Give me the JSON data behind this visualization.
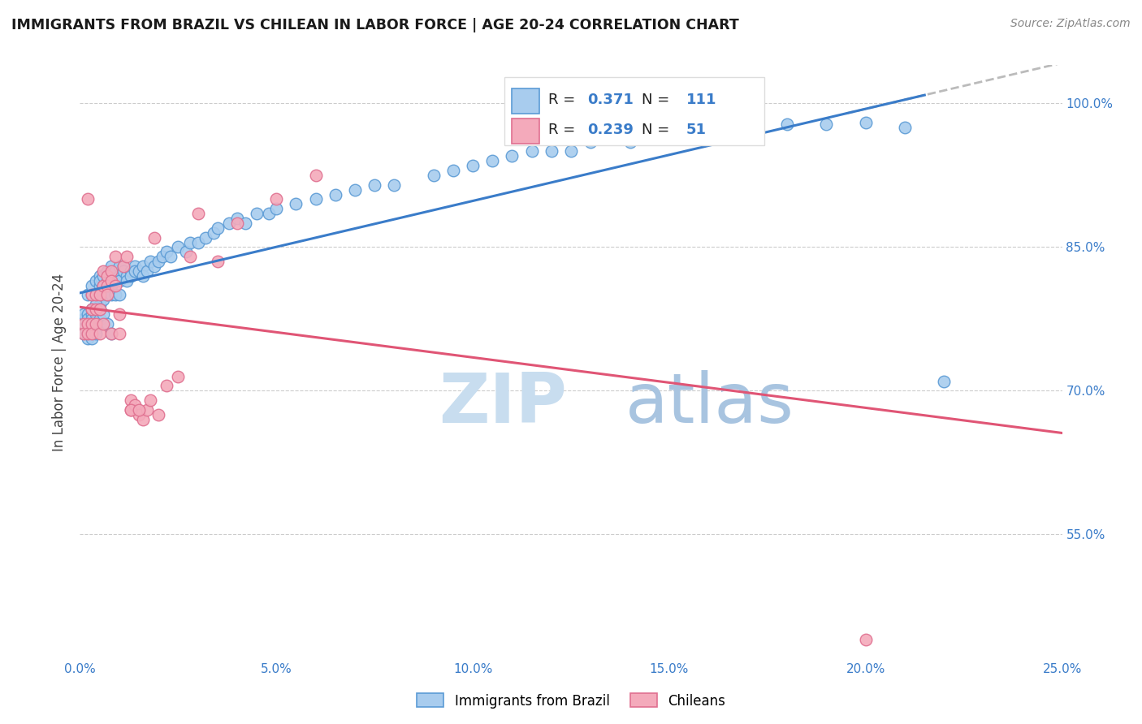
{
  "title": "IMMIGRANTS FROM BRAZIL VS CHILEAN IN LABOR FORCE | AGE 20-24 CORRELATION CHART",
  "source": "Source: ZipAtlas.com",
  "ylabel": "In Labor Force | Age 20-24",
  "legend_brazil_R": "0.371",
  "legend_brazil_N": "111",
  "legend_chilean_R": "0.239",
  "legend_chilean_N": "51",
  "brazil_color": "#A8CCEE",
  "brazil_edge_color": "#5B9BD5",
  "chilean_color": "#F4AABB",
  "chilean_edge_color": "#E07090",
  "brazil_line_color": "#3A7CC9",
  "chilean_line_color": "#E05575",
  "dashed_line_color": "#BBBBBB",
  "watermark_zip": "ZIP",
  "watermark_atlas": "atlas",
  "xmin": 0.0,
  "xmax": 0.25,
  "ymin": 0.42,
  "ymax": 1.04,
  "ytick_vals": [
    0.55,
    0.7,
    0.85,
    1.0
  ],
  "ytick_labels": [
    "55.0%",
    "70.0%",
    "85.0%",
    "100.0%"
  ],
  "xtick_vals": [
    0.0,
    0.025,
    0.05,
    0.075,
    0.1,
    0.125,
    0.15,
    0.175,
    0.2,
    0.225,
    0.25
  ],
  "xtick_labels": [
    "0.0%",
    "",
    "5.0%",
    "",
    "10.0%",
    "",
    "15.0%",
    "",
    "20.0%",
    "",
    "25.0%"
  ],
  "brazil_x": [
    0.001,
    0.001,
    0.001,
    0.001,
    0.002,
    0.002,
    0.002,
    0.002,
    0.002,
    0.002,
    0.002,
    0.003,
    0.003,
    0.003,
    0.003,
    0.003,
    0.003,
    0.003,
    0.003,
    0.004,
    0.004,
    0.004,
    0.004,
    0.004,
    0.004,
    0.005,
    0.005,
    0.005,
    0.005,
    0.005,
    0.005,
    0.006,
    0.006,
    0.006,
    0.006,
    0.007,
    0.007,
    0.007,
    0.007,
    0.008,
    0.008,
    0.008,
    0.008,
    0.009,
    0.009,
    0.009,
    0.01,
    0.01,
    0.01,
    0.01,
    0.011,
    0.011,
    0.012,
    0.012,
    0.013,
    0.013,
    0.014,
    0.014,
    0.015,
    0.016,
    0.016,
    0.017,
    0.018,
    0.019,
    0.02,
    0.021,
    0.022,
    0.023,
    0.025,
    0.027,
    0.028,
    0.03,
    0.032,
    0.034,
    0.035,
    0.038,
    0.04,
    0.042,
    0.045,
    0.048,
    0.05,
    0.055,
    0.06,
    0.065,
    0.07,
    0.075,
    0.08,
    0.09,
    0.095,
    0.1,
    0.105,
    0.11,
    0.115,
    0.12,
    0.125,
    0.13,
    0.14,
    0.15,
    0.16,
    0.17,
    0.18,
    0.19,
    0.2,
    0.21,
    0.003,
    0.004,
    0.005,
    0.006,
    0.007,
    0.008,
    0.22
  ],
  "brazil_y": [
    0.775,
    0.78,
    0.765,
    0.76,
    0.8,
    0.78,
    0.775,
    0.77,
    0.76,
    0.755,
    0.77,
    0.78,
    0.775,
    0.77,
    0.765,
    0.76,
    0.755,
    0.8,
    0.81,
    0.8,
    0.78,
    0.77,
    0.765,
    0.76,
    0.815,
    0.8,
    0.79,
    0.775,
    0.81,
    0.82,
    0.815,
    0.81,
    0.8,
    0.795,
    0.82,
    0.815,
    0.81,
    0.8,
    0.825,
    0.82,
    0.81,
    0.8,
    0.83,
    0.825,
    0.815,
    0.8,
    0.82,
    0.815,
    0.8,
    0.83,
    0.83,
    0.825,
    0.82,
    0.815,
    0.825,
    0.82,
    0.83,
    0.825,
    0.825,
    0.83,
    0.82,
    0.825,
    0.835,
    0.83,
    0.835,
    0.84,
    0.845,
    0.84,
    0.85,
    0.845,
    0.855,
    0.855,
    0.86,
    0.865,
    0.87,
    0.875,
    0.88,
    0.875,
    0.885,
    0.885,
    0.89,
    0.895,
    0.9,
    0.905,
    0.91,
    0.915,
    0.915,
    0.925,
    0.93,
    0.935,
    0.94,
    0.945,
    0.95,
    0.95,
    0.95,
    0.96,
    0.96,
    0.965,
    0.97,
    0.975,
    0.978,
    0.978,
    0.98,
    0.975,
    0.785,
    0.79,
    0.785,
    0.78,
    0.77,
    0.76,
    0.71
  ],
  "chilean_x": [
    0.001,
    0.001,
    0.002,
    0.002,
    0.002,
    0.003,
    0.003,
    0.003,
    0.003,
    0.004,
    0.004,
    0.004,
    0.005,
    0.005,
    0.005,
    0.006,
    0.006,
    0.006,
    0.007,
    0.007,
    0.007,
    0.008,
    0.008,
    0.008,
    0.009,
    0.009,
    0.01,
    0.01,
    0.011,
    0.012,
    0.013,
    0.013,
    0.014,
    0.015,
    0.016,
    0.017,
    0.018,
    0.019,
    0.02,
    0.022,
    0.025,
    0.028,
    0.03,
    0.035,
    0.04,
    0.05,
    0.06,
    0.013,
    0.015,
    0.12,
    0.2
  ],
  "chilean_y": [
    0.77,
    0.76,
    0.9,
    0.77,
    0.76,
    0.8,
    0.785,
    0.77,
    0.76,
    0.8,
    0.785,
    0.77,
    0.8,
    0.785,
    0.76,
    0.825,
    0.81,
    0.77,
    0.82,
    0.81,
    0.8,
    0.825,
    0.815,
    0.76,
    0.84,
    0.81,
    0.78,
    0.76,
    0.83,
    0.84,
    0.69,
    0.68,
    0.685,
    0.675,
    0.67,
    0.68,
    0.69,
    0.86,
    0.675,
    0.705,
    0.715,
    0.84,
    0.885,
    0.835,
    0.875,
    0.9,
    0.925,
    0.68,
    0.68,
    1.0,
    0.44
  ]
}
